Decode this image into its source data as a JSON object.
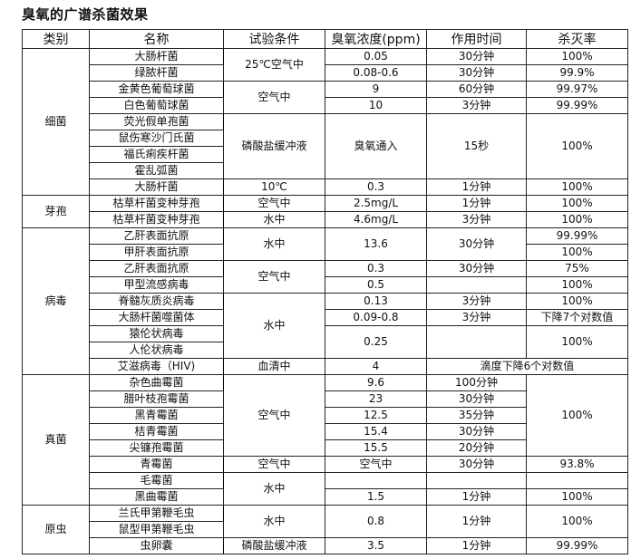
{
  "title": "臭氧的广谱杀菌效果",
  "headers": [
    "类别",
    "名称",
    "试验条件",
    "臭氧浓度(ppm)",
    "作用时间",
    "杀灭率"
  ],
  "rows": [
    {
      "cells": [
        {
          "text": "细菌",
          "rowspan": 9
        },
        {
          "text": "大肠杆菌"
        },
        {
          "text": "25℃空气中",
          "rowspan": 2
        },
        {
          "text": "0.05"
        },
        {
          "text": "30分钟"
        },
        {
          "text": "100%"
        }
      ]
    },
    {
      "cells": [
        {
          "text": "绿脓杆菌"
        },
        {
          "text": "0.08-0.6"
        },
        {
          "text": "30分钟"
        },
        {
          "text": "99.9%"
        }
      ]
    },
    {
      "cells": [
        {
          "text": "金黄色葡萄球菌"
        },
        {
          "text": "空气中",
          "rowspan": 2
        },
        {
          "text": "9"
        },
        {
          "text": "60分钟"
        },
        {
          "text": "99.97%"
        }
      ]
    },
    {
      "cells": [
        {
          "text": "白色葡萄球菌"
        },
        {
          "text": "10"
        },
        {
          "text": "3分钟"
        },
        {
          "text": "99.99%"
        }
      ]
    },
    {
      "cells": [
        {
          "text": "荧光假单孢菌"
        },
        {
          "text": "磷酸盐缓冲液",
          "rowspan": 4
        },
        {
          "text": "臭氧通入",
          "rowspan": 4
        },
        {
          "text": "15秒",
          "rowspan": 4
        },
        {
          "text": "100%",
          "rowspan": 4
        }
      ]
    },
    {
      "cells": [
        {
          "text": "鼠伤寒沙门氏菌"
        }
      ]
    },
    {
      "cells": [
        {
          "text": "福氏痢疾杆菌"
        }
      ]
    },
    {
      "cells": [
        {
          "text": "霍乱弧菌"
        }
      ]
    },
    {
      "cells": [
        {
          "text": "大肠杆菌"
        },
        {
          "text": "10℃"
        },
        {
          "text": "0.3"
        },
        {
          "text": "1分钟"
        },
        {
          "text": "100%"
        }
      ]
    },
    {
      "cells": [
        {
          "text": "芽孢",
          "rowspan": 2
        },
        {
          "text": "枯草杆菌变种芽孢"
        },
        {
          "text": "空气中"
        },
        {
          "text": "2.5mg/L"
        },
        {
          "text": "1分钟"
        },
        {
          "text": "100%"
        }
      ]
    },
    {
      "cells": [
        {
          "text": "枯草杆菌变种芽孢"
        },
        {
          "text": "水中"
        },
        {
          "text": "4.6mg/L"
        },
        {
          "text": "3分钟"
        },
        {
          "text": "100%"
        }
      ]
    },
    {
      "cells": [
        {
          "text": "病毒",
          "rowspan": 9
        },
        {
          "text": "乙肝表面抗原"
        },
        {
          "text": "水中",
          "rowspan": 2
        },
        {
          "text": "13.6",
          "rowspan": 2
        },
        {
          "text": "30分钟",
          "rowspan": 2
        },
        {
          "text": "99.99%"
        }
      ]
    },
    {
      "cells": [
        {
          "text": "甲肝表面抗原"
        },
        {
          "text": "100%"
        }
      ]
    },
    {
      "cells": [
        {
          "text": "乙肝表面抗原"
        },
        {
          "text": "空气中",
          "rowspan": 2
        },
        {
          "text": "0.3"
        },
        {
          "text": "30分钟"
        },
        {
          "text": "75%"
        }
      ]
    },
    {
      "cells": [
        {
          "text": "甲型流感病毒"
        },
        {
          "text": "0.5"
        },
        {
          "text": ""
        },
        {
          "text": "100%"
        }
      ]
    },
    {
      "cells": [
        {
          "text": "脊髓灰质炎病毒"
        },
        {
          "text": "水中",
          "rowspan": 4
        },
        {
          "text": "0.13"
        },
        {
          "text": "3分钟"
        },
        {
          "text": "100%"
        }
      ]
    },
    {
      "cells": [
        {
          "text": "大肠杆菌噬菌体"
        },
        {
          "text": "0.09-0.8"
        },
        {
          "text": "3分钟"
        },
        {
          "text": "下降7个对数值"
        }
      ]
    },
    {
      "cells": [
        {
          "text": "猿伦状病毒"
        },
        {
          "text": "0.25",
          "rowspan": 2
        },
        {
          "text": "",
          "rowspan": 2
        },
        {
          "text": "100%",
          "rowspan": 2
        }
      ]
    },
    {
      "cells": [
        {
          "text": "人伦状病毒"
        }
      ]
    },
    {
      "cells": [
        {
          "text": "艾滋病毒（HIV)"
        },
        {
          "text": "血清中"
        },
        {
          "text": "4"
        },
        {
          "text": "滴度下降6个对数值",
          "colspan": 2
        }
      ]
    },
    {
      "cells": [
        {
          "text": "真菌",
          "rowspan": 8
        },
        {
          "text": "杂色曲霉菌"
        },
        {
          "text": "空气中",
          "rowspan": 5
        },
        {
          "text": "9.6"
        },
        {
          "text": "100分钟"
        },
        {
          "text": "100%",
          "rowspan": 5
        }
      ]
    },
    {
      "cells": [
        {
          "text": "腊叶枝孢霉菌"
        },
        {
          "text": "23"
        },
        {
          "text": "30分钟"
        }
      ]
    },
    {
      "cells": [
        {
          "text": "黑青霉菌"
        },
        {
          "text": "12.5"
        },
        {
          "text": "35分钟"
        }
      ]
    },
    {
      "cells": [
        {
          "text": "桔青霉菌"
        },
        {
          "text": "15.4"
        },
        {
          "text": "30分钟"
        }
      ]
    },
    {
      "cells": [
        {
          "text": "尖镰孢霉菌"
        },
        {
          "text": "15.5"
        },
        {
          "text": "20分钟"
        }
      ]
    },
    {
      "cells": [
        {
          "text": "青霉菌"
        },
        {
          "text": "空气中"
        },
        {
          "text": "空气中"
        },
        {
          "text": "30分钟"
        },
        {
          "text": "93.8%"
        }
      ]
    },
    {
      "cells": [
        {
          "text": "毛霉菌"
        },
        {
          "text": "水中",
          "rowspan": 2
        },
        {
          "text": ""
        },
        {
          "text": ""
        },
        {
          "text": ""
        }
      ]
    },
    {
      "cells": [
        {
          "text": "黑曲霉菌"
        },
        {
          "text": "1.5"
        },
        {
          "text": "1分钟"
        },
        {
          "text": "100%"
        }
      ]
    },
    {
      "cells": [
        {
          "text": "原虫",
          "rowspan": 3
        },
        {
          "text": "兰氏甲第鞭毛虫"
        },
        {
          "text": "水中",
          "rowspan": 2
        },
        {
          "text": "0.8",
          "rowspan": 2
        },
        {
          "text": "1分钟",
          "rowspan": 2
        },
        {
          "text": "100%",
          "rowspan": 2
        }
      ]
    },
    {
      "cells": [
        {
          "text": "鼠型甲第鞭毛虫"
        }
      ]
    },
    {
      "cells": [
        {
          "text": "虫卵囊"
        },
        {
          "text": "磷酸盐缓冲液"
        },
        {
          "text": "3.5"
        },
        {
          "text": "1分钟"
        },
        {
          "text": "99.99%"
        }
      ]
    }
  ]
}
